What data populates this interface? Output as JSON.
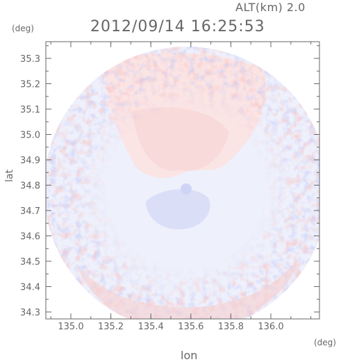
{
  "header": {
    "altitude_label": "ALT(km) 2.0",
    "datetime": "2012/09/14 16:25:53"
  },
  "axes": {
    "x_title": "lon",
    "x_unit": "(deg)",
    "y_title": "lat",
    "y_unit": "(deg)",
    "x_ticks": [
      "135.0",
      "135.2",
      "135.4",
      "135.6",
      "135.8",
      "136.0"
    ],
    "y_ticks": [
      "35.3",
      "35.2",
      "35.1",
      "35.0",
      "34.9",
      "34.8",
      "34.7",
      "34.6",
      "34.5",
      "34.4",
      "34.3"
    ]
  },
  "colors": {
    "positive": "#f7c9c9",
    "negative": "#c9cdf7",
    "axis": "#666666"
  }
}
